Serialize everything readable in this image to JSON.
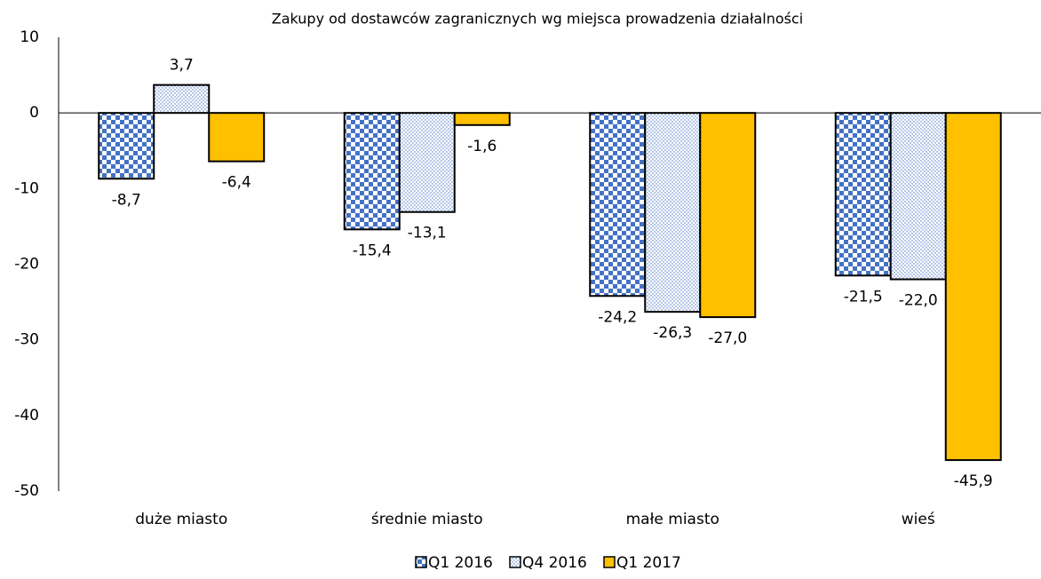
{
  "chart_data": {
    "type": "bar",
    "title": "Zakupy od dostawców zagranicznych wg miejsca prowadzenia działalności",
    "categories": [
      "duże miasto",
      "średnie miasto",
      "małe miasto",
      "wieś"
    ],
    "series": [
      {
        "name": "Q1 2016",
        "color": "#4472c4",
        "pattern": "checker",
        "values": [
          -8.7,
          -15.4,
          -24.2,
          -21.5
        ],
        "value_labels": [
          "-8,7",
          "-15,4",
          "-24,2",
          "-21,5"
        ]
      },
      {
        "name": "Q4 2016",
        "color": "#4472c4",
        "pattern": "dots",
        "values": [
          3.7,
          -13.1,
          -26.3,
          -22.0
        ],
        "value_labels": [
          "3,7",
          "-13,1",
          "-26,3",
          "-22,0"
        ]
      },
      {
        "name": "Q1 2017",
        "color": "#ffc000",
        "pattern": "solid",
        "values": [
          -6.4,
          -1.6,
          -27.0,
          -45.9
        ],
        "value_labels": [
          "-6,4",
          "-1,6",
          "-27,0",
          "-45,9"
        ]
      }
    ],
    "ylim": [
      -50,
      10
    ],
    "yticks": [
      10,
      0,
      -10,
      -20,
      -30,
      -40,
      -50
    ],
    "grid": false,
    "legend": "bottom"
  }
}
